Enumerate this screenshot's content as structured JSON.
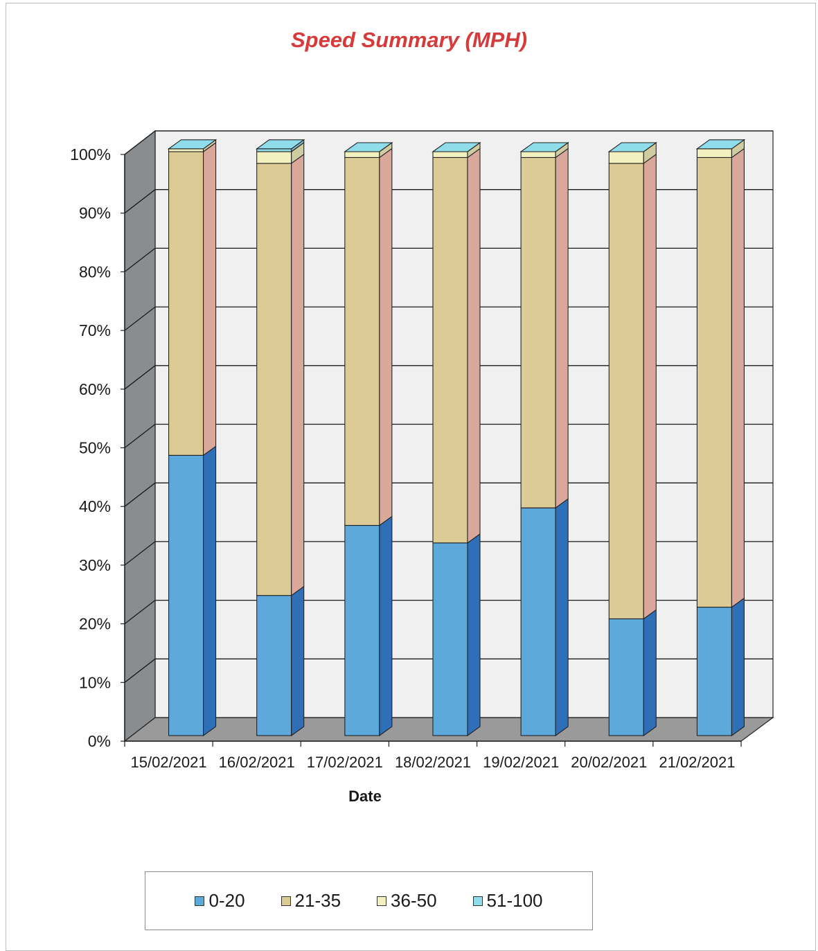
{
  "chart_data": {
    "type": "bar",
    "subtype": "stacked-100-percent-3d",
    "title": "Speed Summary (MPH)",
    "xlabel": "Date",
    "ylabel": "",
    "categories": [
      "15/02/2021",
      "16/02/2021",
      "17/02/2021",
      "18/02/2021",
      "19/02/2021",
      "20/02/2021",
      "21/02/2021"
    ],
    "series": [
      {
        "name": "0-20",
        "values": [
          48,
          24,
          36,
          33,
          39,
          20,
          22
        ],
        "color": "#5ea9dc"
      },
      {
        "name": "21-35",
        "values": [
          52,
          74,
          63,
          66,
          60,
          78,
          77
        ],
        "color": "#dccb94"
      },
      {
        "name": "36-50",
        "values": [
          0.5,
          2,
          1,
          1,
          1,
          2,
          1.5
        ],
        "color": "#f3f0bf"
      },
      {
        "name": "51-100",
        "values": [
          0,
          0.5,
          0,
          0,
          0,
          0,
          0
        ],
        "color": "#8fdcea"
      }
    ],
    "ylim": [
      0,
      100
    ],
    "yticks": [
      "0%",
      "10%",
      "20%",
      "30%",
      "40%",
      "50%",
      "60%",
      "70%",
      "80%",
      "90%",
      "100%"
    ],
    "grid": true,
    "legend": "bottom"
  }
}
